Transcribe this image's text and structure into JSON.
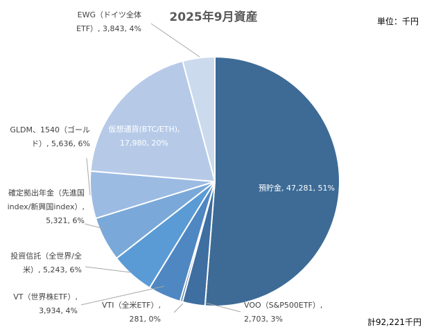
{
  "chart_data": {
    "type": "pie",
    "title": "2025年9月資産",
    "unit_label": "単位：千円",
    "total_label": "計92,221千円",
    "slices": [
      {
        "label": "預貯金",
        "value": 47281,
        "percent": 51,
        "data_label": [
          "預貯金, 47,281, 51%"
        ],
        "color": "#3d6b96",
        "label_color": "#ffffff"
      },
      {
        "label": "VOO（S&P500ETF）",
        "value": 2703,
        "percent": 3,
        "data_label": [
          "VOO（S&P500ETF）,",
          "2,703, 3%"
        ],
        "color": "#3f6ea1",
        "label_color": "#404040"
      },
      {
        "label": "VTI（全米ETF）",
        "value": 281,
        "percent": 0,
        "data_label": [
          "VTI（全米ETF）,",
          "281, 0%"
        ],
        "color": "#486fa0",
        "label_color": "#404040"
      },
      {
        "label": "VT（世界株ETF）",
        "value": 3934,
        "percent": 4,
        "data_label": [
          "VT（世界株ETF）,",
          "3,934, 4%"
        ],
        "color": "#4f87c2",
        "label_color": "#404040"
      },
      {
        "label": "投資信託（全世界/全米）",
        "value": 5243,
        "percent": 6,
        "data_label": [
          "投資信託（全世界/全",
          "米）, 5,243, 6%"
        ],
        "color": "#5b9bd5",
        "label_color": "#404040"
      },
      {
        "label": "確定拠出年金（先進国index/新興国index）",
        "value": 5321,
        "percent": 6,
        "data_label": [
          "確定拠出年金（先進国",
          "index/新興国index）,",
          "5,321, 6%"
        ],
        "color": "#7aa9d9",
        "label_color": "#404040"
      },
      {
        "label": "GLDM、1540（ゴールド）",
        "value": 5636,
        "percent": 6,
        "data_label": [
          "GLDM、1540（ゴール",
          "ド）, 5,636, 6%"
        ],
        "color": "#9cbbe3",
        "label_color": "#404040"
      },
      {
        "label": "仮想通貨(BTC/ETH)",
        "value": 17980,
        "percent": 20,
        "data_label": [
          "仮想通貨(BTC/ETH),",
          "17,980, 20%"
        ],
        "color": "#b6cae8",
        "label_color": "#ffffff"
      },
      {
        "label": "EWG（ドイツ全体ETF）",
        "value": 3843,
        "percent": 4,
        "data_label": [
          "EWG（ドイツ全体",
          "ETF）, 3,843, 4%"
        ],
        "color": "#cbdaed",
        "label_color": "#404040"
      }
    ]
  }
}
